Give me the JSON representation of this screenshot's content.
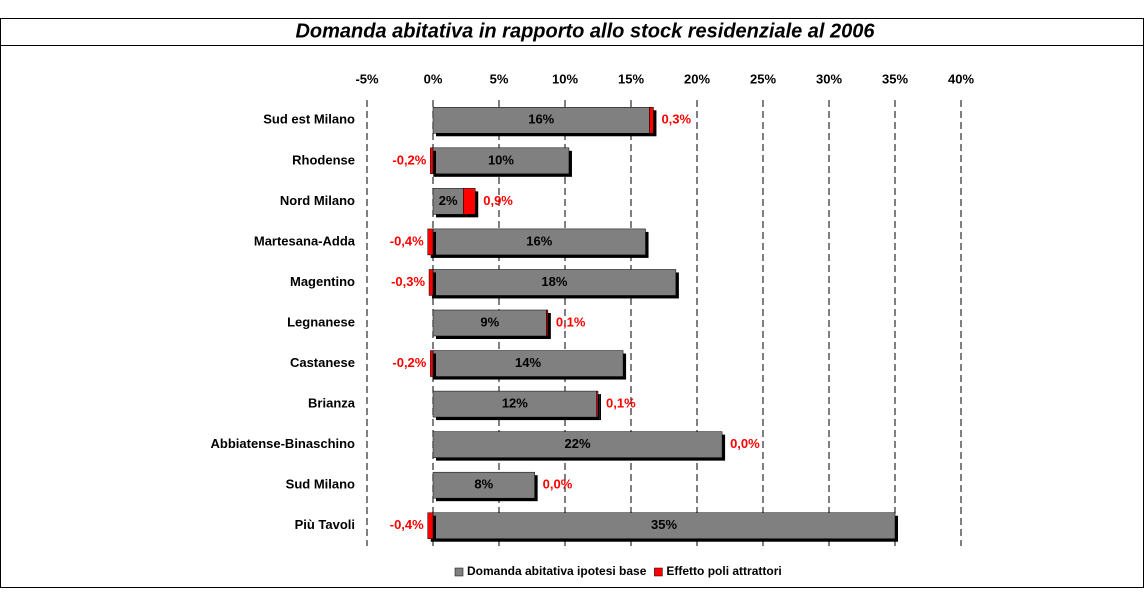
{
  "chart_data": {
    "type": "bar",
    "orientation": "horizontal",
    "stacked": true,
    "title": "Domanda abitativa in rapporto allo stock residenziale al 2006",
    "categories": [
      "Sud est Milano",
      "Rhodense",
      "Nord Milano",
      "Martesana-Adda",
      "Magentino",
      "Legnanese",
      "Castanese",
      "Brianza",
      "Abbiatense-Binaschino",
      "Sud Milano",
      "Più Tavoli"
    ],
    "series": [
      {
        "name": "Domanda abitativa ipotesi base",
        "color": "#808080",
        "values": [
          16.4,
          10.3,
          2.3,
          16.1,
          18.4,
          8.6,
          14.4,
          12.4,
          21.9,
          7.7,
          35.0
        ],
        "value_labels": [
          "16%",
          "10%",
          "2%",
          "16%",
          "18%",
          "9%",
          "14%",
          "12%",
          "22%",
          "8%",
          "35%"
        ]
      },
      {
        "name": "Effetto poli attrattori",
        "color": "#ff0000",
        "values": [
          0.3,
          -0.2,
          0.9,
          -0.4,
          -0.3,
          0.1,
          -0.2,
          0.1,
          0.0,
          0.0,
          -0.4
        ],
        "value_labels": [
          "0,3%",
          "-0,2%",
          "0,9%",
          "-0,4%",
          "-0,3%",
          "0,1%",
          "-0,2%",
          "0,1%",
          "0,0%",
          "0,0%",
          "-0,4%"
        ]
      }
    ],
    "xlim": [
      -5,
      40
    ],
    "xticks": [
      {
        "value": -5,
        "label": "-5%"
      },
      {
        "value": 0,
        "label": "0%"
      },
      {
        "value": 5,
        "label": "5%"
      },
      {
        "value": 10,
        "label": "10%"
      },
      {
        "value": 15,
        "label": "15%"
      },
      {
        "value": 20,
        "label": "20%"
      },
      {
        "value": 25,
        "label": "25%"
      },
      {
        "value": 30,
        "label": "30%"
      },
      {
        "value": 35,
        "label": "35%"
      },
      {
        "value": 40,
        "label": "40%"
      }
    ],
    "grid": true,
    "legend": "bottom"
  }
}
